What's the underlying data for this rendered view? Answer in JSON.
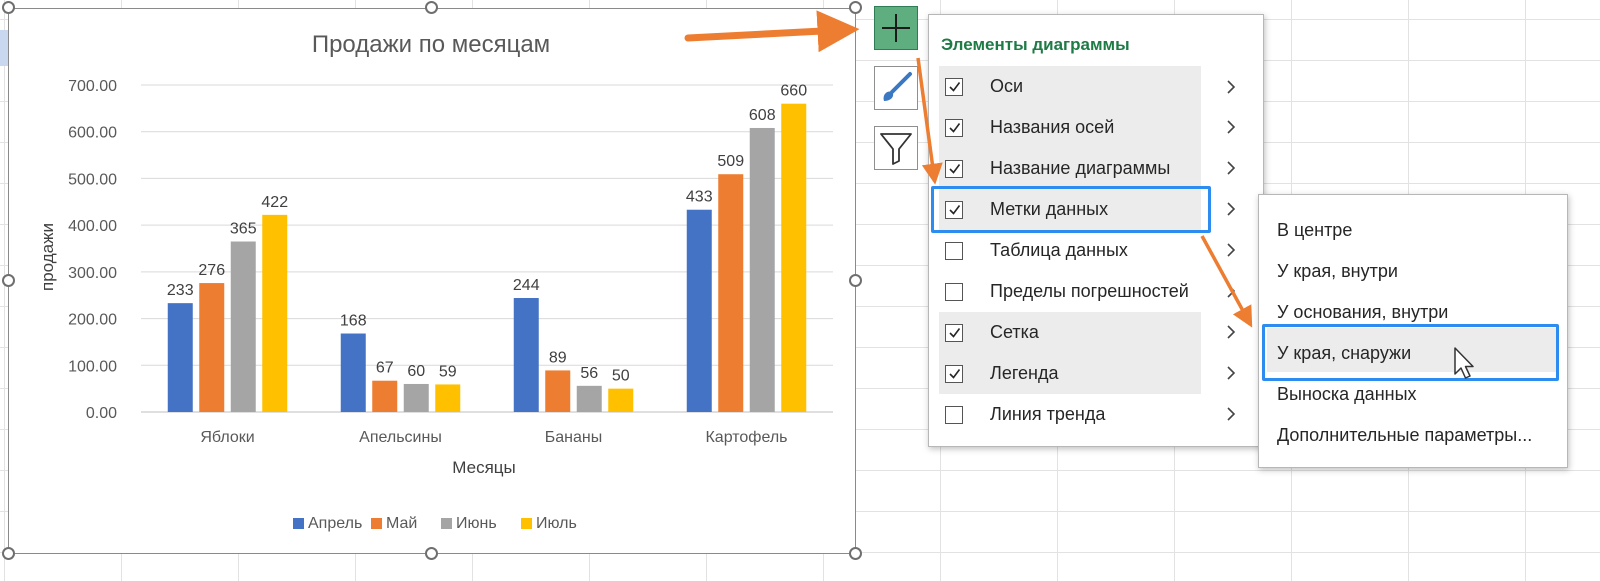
{
  "chart_data": {
    "type": "bar",
    "title": "Продажи по месяцам",
    "xlabel": "Месяцы",
    "ylabel": "продажи",
    "categories": [
      "Яблоки",
      "Апельсины",
      "Бананы",
      "Картофель"
    ],
    "series": [
      {
        "name": "Апрель",
        "color": "#4472c4",
        "values": [
          233,
          168,
          244,
          433
        ]
      },
      {
        "name": "Май",
        "color": "#ed7d31",
        "values": [
          276,
          67,
          89,
          509
        ]
      },
      {
        "name": "Июнь",
        "color": "#a5a5a5",
        "values": [
          365,
          60,
          56,
          608
        ]
      },
      {
        "name": "Июль",
        "color": "#ffc000",
        "values": [
          422,
          59,
          50,
          660
        ]
      }
    ],
    "ylim": [
      0,
      700
    ],
    "yticks": [
      "0.00",
      "100.00",
      "200.00",
      "300.00",
      "400.00",
      "500.00",
      "600.00",
      "700.00"
    ],
    "grid": true,
    "legend": "bottom"
  },
  "side_buttons": {
    "elements": "plus-icon",
    "styles": "brush-icon",
    "filters": "funnel-icon",
    "active_color": "#5fae7f"
  },
  "elements_panel": {
    "title": "Элементы диаграммы",
    "items": [
      {
        "label": "Оси",
        "checked": true
      },
      {
        "label": "Названия осей",
        "checked": true
      },
      {
        "label": "Название диаграммы",
        "checked": true
      },
      {
        "label": "Метки данных",
        "checked": true
      },
      {
        "label": "Таблица данных",
        "checked": false
      },
      {
        "label": "Пределы погрешностей",
        "checked": false
      },
      {
        "label": "Сетка",
        "checked": true
      },
      {
        "label": "Легенда",
        "checked": true
      },
      {
        "label": "Линия тренда",
        "checked": false
      }
    ]
  },
  "data_labels_submenu": {
    "items": [
      "В центре",
      "У края, внутри",
      "У основания, внутри",
      "У края, снаружи",
      "Выноска данных",
      "Дополнительные параметры..."
    ],
    "hovered": "У края, снаружи"
  },
  "highlight_color": "#2d8cf0",
  "arrow_color": "#ed7d31"
}
